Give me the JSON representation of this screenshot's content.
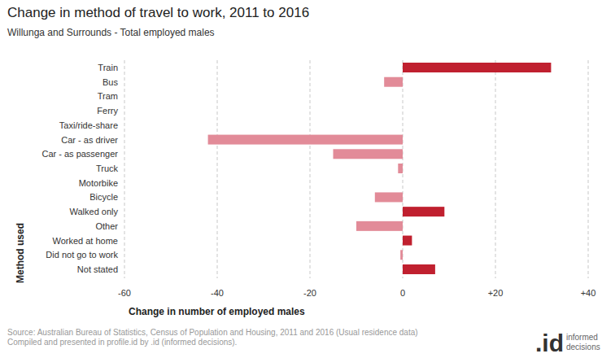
{
  "chart_data": {
    "type": "bar",
    "orientation": "horizontal",
    "title": "Change in method of travel to work, 2011 to 2016",
    "subtitle": "Willunga and Surrounds - Total employed males",
    "x_label": "Change in number of employed males",
    "y_label": "Method used",
    "categories": [
      "Train",
      "Bus",
      "Tram",
      "Ferry",
      "Taxi/ride-share",
      "Car - as driver",
      "Car - as passenger",
      "Truck",
      "Motorbike",
      "Bicycle",
      "Walked only",
      "Other",
      "Worked at home",
      "Did not go to work",
      "Not stated"
    ],
    "values": [
      32,
      -4,
      0,
      0,
      0,
      -42,
      -15,
      -1,
      0,
      -6,
      9,
      -10,
      2,
      -0.5,
      7
    ],
    "colors": [
      "#c0202f",
      "#e28b98",
      "#e28b98",
      "#e28b98",
      "#e28b98",
      "#e28b98",
      "#e28b98",
      "#e28b98",
      "#e28b98",
      "#e28b98",
      "#c0202f",
      "#e28b98",
      "#c0202f",
      "#e28b98",
      "#c0202f"
    ],
    "xlim": [
      -60,
      40
    ],
    "xticks": [
      -60,
      -40,
      -20,
      0,
      {
        "value": 20,
        "label": "+20"
      },
      {
        "value": 40,
        "label": "+40"
      }
    ],
    "grid": true,
    "source": [
      "Source: Australian Bureau of Statistics, Census of Population and Housing, 2011 and 2016 (Usual residence data)",
      "Compiled and presented in profile.id by .id (informed decisions)."
    ],
    "logo": {
      "mark": ".id",
      "text": "informed decisions"
    }
  }
}
